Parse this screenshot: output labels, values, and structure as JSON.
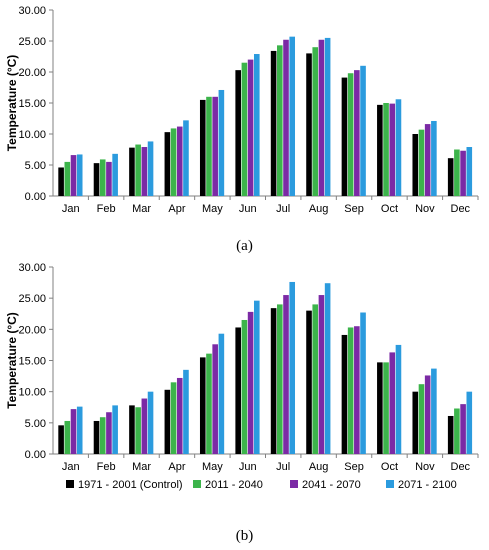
{
  "colors": {
    "series": [
      "#000000",
      "#3cb44b",
      "#7b2aa5",
      "#2b9bde"
    ],
    "axis": "#808080",
    "grid": "#d9d9d9",
    "text": "#000000"
  },
  "legend": {
    "position": "bottom",
    "labels": [
      "1971 - 2001 (Control)",
      "2011 - 2040",
      "2041 - 2070",
      "2071 - 2100"
    ]
  },
  "chart_data": [
    {
      "type": "bar",
      "caption": "(a)",
      "title": "",
      "xlabel": "",
      "ylabel": "Temperature (°C)",
      "ylim": [
        0,
        30
      ],
      "yticks": [
        "0.00",
        "5.00",
        "10.00",
        "15.00",
        "20.00",
        "25.00",
        "30.00"
      ],
      "grid": false,
      "categories": [
        "Jan",
        "Feb",
        "Mar",
        "Apr",
        "May",
        "Jun",
        "Jul",
        "Aug",
        "Sep",
        "Oct",
        "Nov",
        "Dec"
      ],
      "series": [
        {
          "name": "1971 - 2001 (Control)",
          "values": [
            4.6,
            5.3,
            7.8,
            10.3,
            15.5,
            20.3,
            23.4,
            23.0,
            19.1,
            14.7,
            10.0,
            6.1
          ]
        },
        {
          "name": "2011 - 2040",
          "values": [
            5.5,
            5.9,
            8.3,
            10.9,
            16.0,
            21.5,
            24.3,
            24.0,
            19.8,
            15.0,
            10.7,
            7.5
          ]
        },
        {
          "name": "2041 - 2070",
          "values": [
            6.6,
            5.5,
            7.9,
            11.2,
            16.0,
            22.0,
            25.2,
            25.2,
            20.3,
            14.9,
            11.6,
            7.3
          ]
        },
        {
          "name": "2071 - 2100",
          "values": [
            6.7,
            6.8,
            8.8,
            12.2,
            17.1,
            22.9,
            25.7,
            25.5,
            21.0,
            15.6,
            12.1,
            7.9
          ]
        }
      ]
    },
    {
      "type": "bar",
      "caption": "(b)",
      "title": "",
      "xlabel": "",
      "ylabel": "Temperature (°C)",
      "ylim": [
        0,
        30
      ],
      "yticks": [
        "0.00",
        "5.00",
        "10.00",
        "15.00",
        "20.00",
        "25.00",
        "30.00"
      ],
      "grid": false,
      "categories": [
        "Jan",
        "Feb",
        "Mar",
        "Apr",
        "May",
        "Jun",
        "Jul",
        "Aug",
        "Sep",
        "Oct",
        "Nov",
        "Dec"
      ],
      "series": [
        {
          "name": "1971 - 2001 (Control)",
          "values": [
            4.6,
            5.3,
            7.8,
            10.3,
            15.5,
            20.3,
            23.4,
            23.0,
            19.1,
            14.7,
            10.0,
            6.1
          ]
        },
        {
          "name": "2011 - 2040",
          "values": [
            5.3,
            5.9,
            7.5,
            11.5,
            16.1,
            21.5,
            24.0,
            24.0,
            20.3,
            14.7,
            11.2,
            7.3
          ]
        },
        {
          "name": "2041 - 2070",
          "values": [
            7.2,
            6.7,
            8.9,
            12.2,
            17.6,
            22.8,
            25.5,
            25.5,
            20.5,
            16.3,
            12.6,
            8.0
          ]
        },
        {
          "name": "2071 - 2100",
          "values": [
            7.6,
            7.8,
            10.0,
            13.5,
            19.3,
            24.6,
            27.6,
            27.4,
            22.7,
            17.5,
            13.7,
            10.0
          ]
        }
      ]
    }
  ]
}
